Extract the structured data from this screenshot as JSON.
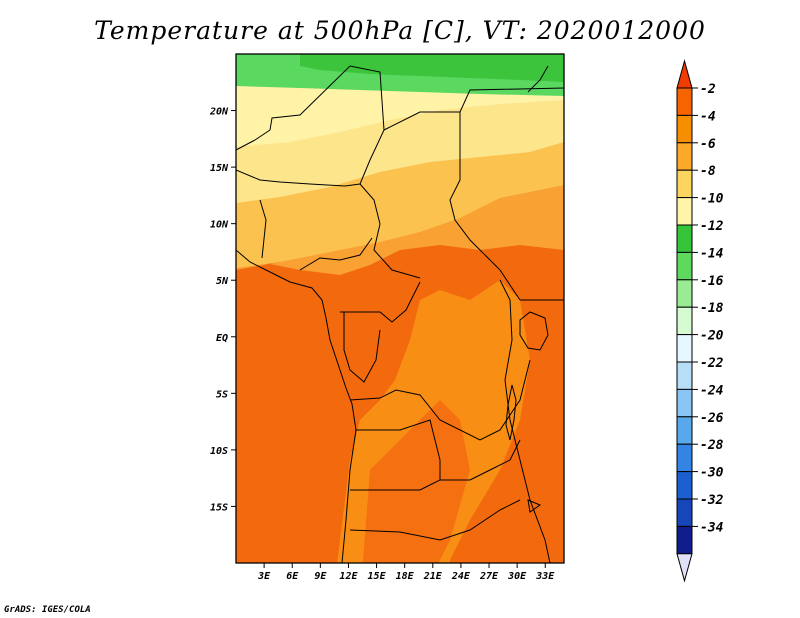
{
  "title": "Temperature at 500hPa [C], VT: 2020012000",
  "credit": "GrADS: IGES/COLA",
  "map": {
    "lon_range": [
      0,
      35
    ],
    "lat_range": [
      -20,
      25
    ],
    "x_ticks": [
      "3E",
      "6E",
      "9E",
      "12E",
      "15E",
      "18E",
      "21E",
      "24E",
      "27E",
      "30E",
      "33E"
    ],
    "x_tick_values": [
      3,
      6,
      9,
      12,
      15,
      18,
      21,
      24,
      27,
      30,
      33
    ],
    "y_ticks": [
      "20N",
      "15N",
      "10N",
      "5N",
      "EQ",
      "5S",
      "10S",
      "15S"
    ],
    "y_tick_values": [
      20,
      15,
      10,
      5,
      0,
      -5,
      -10,
      -15
    ]
  },
  "colorbar": {
    "labels": [
      "-2",
      "-4",
      "-6",
      "-8",
      "-10",
      "-12",
      "-14",
      "-16",
      "-18",
      "-20",
      "-22",
      "-24",
      "-26",
      "-28",
      "-30",
      "-32",
      "-34"
    ],
    "colors": [
      "#f03c00",
      "#f56400",
      "#f78e00",
      "#faaa28",
      "#fcd460",
      "#fff4a8",
      "#35c43a",
      "#5fd85e",
      "#9aec94",
      "#d6fad2",
      "#e6f7ff",
      "#b6def7",
      "#8ac6f5",
      "#5aa8ec",
      "#3484e4",
      "#1c5fd0",
      "#1746b8",
      "#0f1e8c",
      "#e0e0f8"
    ]
  },
  "fill_colors": {
    "ocean_south": "#f36a0e",
    "inland_south": "#f88e14",
    "deep_core": "#f57010",
    "central_band": "#f9a132",
    "north_band": "#fbc250",
    "sahel": "#fde58c",
    "sahara": "#fff3a8",
    "green_light": "#5ad860",
    "green_dark": "#3cc43c"
  }
}
